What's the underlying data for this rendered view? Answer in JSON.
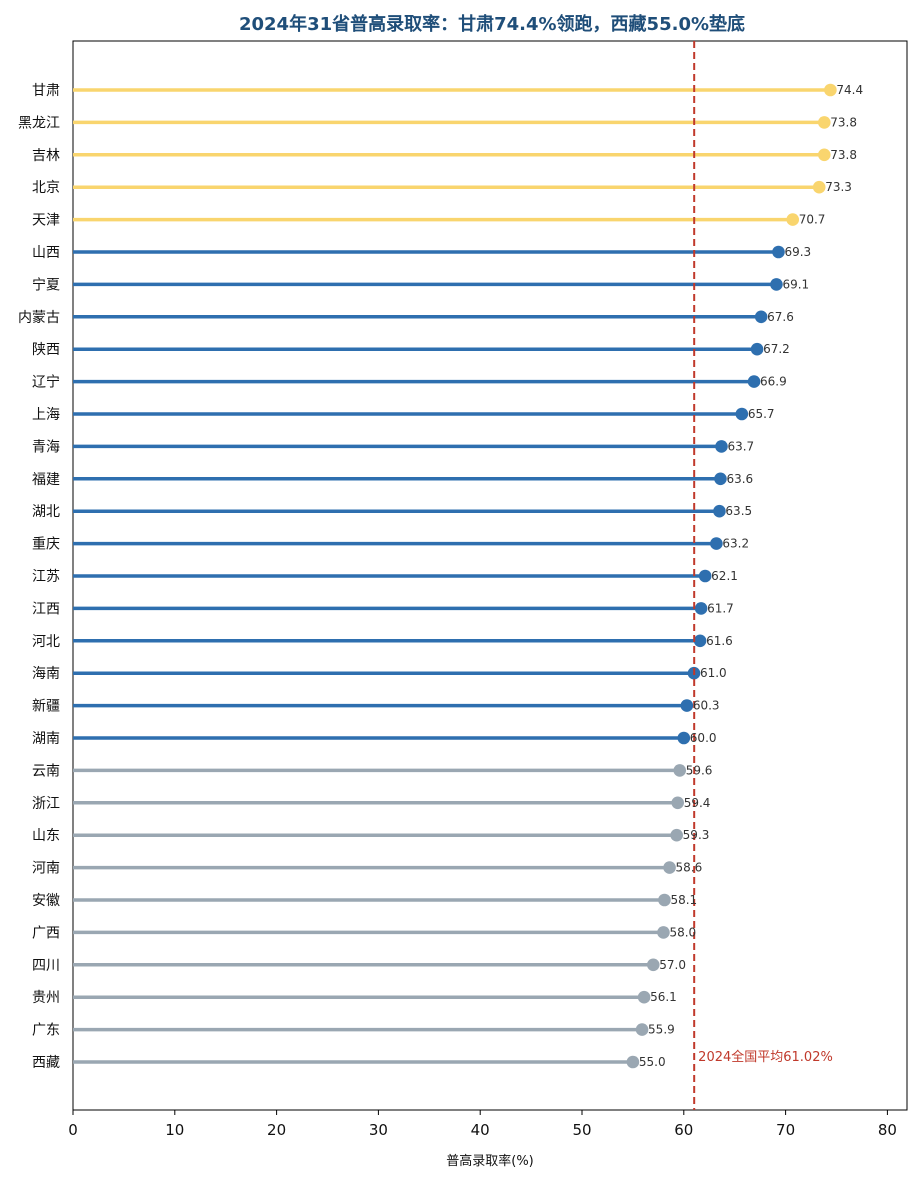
{
  "chart_data": {
    "type": "lollipop",
    "title": "2024年31省普高录取率：甘肃74.4%领跑，西藏55.0%垫底",
    "xlabel": "普高录取率(%)",
    "xlim": [
      0,
      82
    ],
    "xticks": [
      0,
      10,
      20,
      30,
      40,
      50,
      60,
      70,
      80
    ],
    "grid": false,
    "categories": [
      "甘肃",
      "黑龙江",
      "吉林",
      "北京",
      "天津",
      "山西",
      "宁夏",
      "内蒙古",
      "陕西",
      "辽宁",
      "上海",
      "青海",
      "福建",
      "湖北",
      "重庆",
      "江苏",
      "江西",
      "河北",
      "海南",
      "新疆",
      "湖南",
      "云南",
      "浙江",
      "山东",
      "河南",
      "安徽",
      "广西",
      "四川",
      "贵州",
      "广东",
      "西藏"
    ],
    "values": [
      74.4,
      73.8,
      73.8,
      73.3,
      70.7,
      69.3,
      69.1,
      67.6,
      67.2,
      66.9,
      65.7,
      63.7,
      63.6,
      63.5,
      63.2,
      62.1,
      61.7,
      61.6,
      61.0,
      60.3,
      60.0,
      59.6,
      59.4,
      59.3,
      58.6,
      58.1,
      58.0,
      57.0,
      56.1,
      55.9,
      55.0
    ],
    "value_labels": [
      "74.4",
      "73.8",
      "73.8",
      "73.3",
      "70.7",
      "69.3",
      "69.1",
      "67.6",
      "67.2",
      "66.9",
      "65.7",
      "63.7",
      "63.6",
      "63.5",
      "63.2",
      "62.1",
      "61.7",
      "61.6",
      "61.0",
      "60.3",
      "60.0",
      "59.6",
      "59.4",
      "59.3",
      "58.6",
      "58.1",
      "58.0",
      "57.0",
      "56.1",
      "55.9",
      "55.0"
    ],
    "groups": [
      "top",
      "top",
      "top",
      "top",
      "top",
      "mid",
      "mid",
      "mid",
      "mid",
      "mid",
      "mid",
      "mid",
      "mid",
      "mid",
      "mid",
      "mid",
      "mid",
      "mid",
      "mid",
      "mid",
      "mid",
      "low",
      "low",
      "low",
      "low",
      "low",
      "low",
      "low",
      "low",
      "low",
      "low"
    ],
    "group_colors": {
      "top": "#f9d56e",
      "mid": "#2e6faf",
      "low": "#9aa7b2"
    },
    "reference_line": {
      "value": 61.02,
      "label": "2024全国平均61.02%",
      "color": "#c0392b",
      "style": "dashed"
    }
  }
}
